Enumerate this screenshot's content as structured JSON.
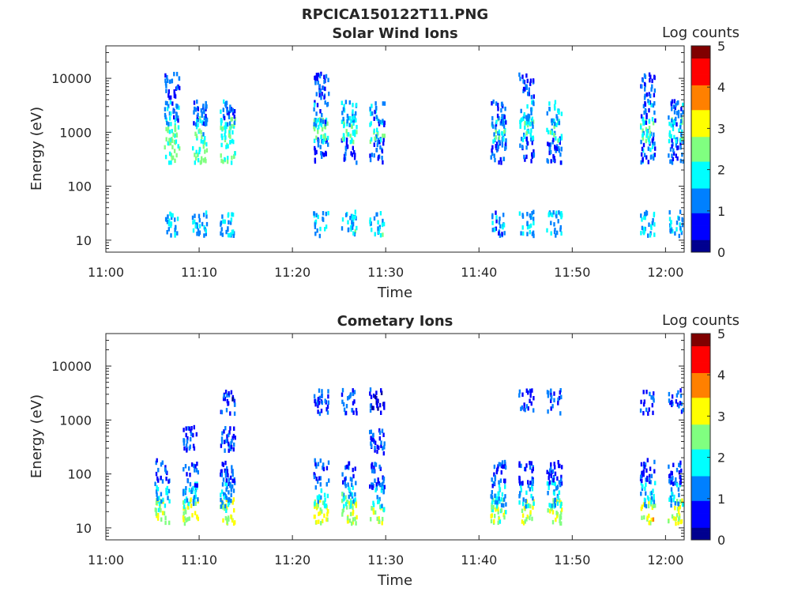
{
  "figure": {
    "title": "RPCICA150122T11.PNG"
  },
  "colormap": [
    "#00008f",
    "#0000ff",
    "#0080ff",
    "#00ffff",
    "#80ff80",
    "#ffff00",
    "#ff8000",
    "#ff0000",
    "#800000"
  ],
  "chart_data": [
    {
      "type": "heatmap",
      "title": "Solar Wind Ions",
      "xlabel": "Time",
      "ylabel": "Energy (eV)",
      "y_scale": "log",
      "xlim": [
        "11:00",
        "12:02"
      ],
      "ylim": [
        6,
        40000
      ],
      "x_ticks": [
        "11:00",
        "11:10",
        "11:20",
        "11:30",
        "11:40",
        "11:50",
        "12:00"
      ],
      "y_ticks": [
        "10",
        "100",
        "1000",
        "10000"
      ],
      "colorbar": {
        "label": "Log counts",
        "range": [
          0,
          5
        ],
        "ticks": [
          "0",
          "1",
          "2",
          "3",
          "4",
          "5"
        ]
      },
      "bursts": [
        {
          "time": "11:07",
          "groups": [
            {
              "energy": 22,
              "log_counts": 1.6
            },
            {
              "energy": 500,
              "log_counts": 2.2
            },
            {
              "energy": 1200,
              "log_counts": 2.3
            },
            {
              "energy": 2500,
              "log_counts": 1.3
            },
            {
              "energy": 8000,
              "log_counts": 1.0
            }
          ]
        },
        {
          "time": "11:10",
          "groups": [
            {
              "energy": 22,
              "log_counts": 1.5
            },
            {
              "energy": 500,
              "log_counts": 2.2
            },
            {
              "energy": 1200,
              "log_counts": 2.0
            },
            {
              "energy": 2500,
              "log_counts": 1.1
            }
          ]
        },
        {
          "time": "11:13",
          "groups": [
            {
              "energy": 22,
              "log_counts": 1.6
            },
            {
              "energy": 500,
              "log_counts": 2.3
            },
            {
              "energy": 1200,
              "log_counts": 2.2
            },
            {
              "energy": 2500,
              "log_counts": 1.2
            }
          ]
        },
        {
          "time": "11:23",
          "groups": [
            {
              "energy": 22,
              "log_counts": 1.5
            },
            {
              "energy": 500,
              "log_counts": 1.0
            },
            {
              "energy": 1200,
              "log_counts": 2.2
            },
            {
              "energy": 2500,
              "log_counts": 1.2
            },
            {
              "energy": 8000,
              "log_counts": 1.0
            }
          ]
        },
        {
          "time": "11:26",
          "groups": [
            {
              "energy": 22,
              "log_counts": 1.7
            },
            {
              "energy": 500,
              "log_counts": 1.0
            },
            {
              "energy": 1200,
              "log_counts": 2.2
            },
            {
              "energy": 2500,
              "log_counts": 1.5
            }
          ]
        },
        {
          "time": "11:29",
          "groups": [
            {
              "energy": 22,
              "log_counts": 1.8
            },
            {
              "energy": 500,
              "log_counts": 1.0
            },
            {
              "energy": 1200,
              "log_counts": 1.9
            },
            {
              "energy": 2500,
              "log_counts": 1.3
            }
          ]
        },
        {
          "time": "11:42",
          "groups": [
            {
              "energy": 22,
              "log_counts": 1.4
            },
            {
              "energy": 500,
              "log_counts": 1.0
            },
            {
              "energy": 1200,
              "log_counts": 1.8
            },
            {
              "energy": 2500,
              "log_counts": 1.1
            }
          ]
        },
        {
          "time": "11:45",
          "groups": [
            {
              "energy": 22,
              "log_counts": 1.6
            },
            {
              "energy": 500,
              "log_counts": 1.0
            },
            {
              "energy": 1200,
              "log_counts": 2.0
            },
            {
              "energy": 2500,
              "log_counts": 1.5
            },
            {
              "energy": 8000,
              "log_counts": 1.0
            }
          ]
        },
        {
          "time": "11:48",
          "groups": [
            {
              "energy": 22,
              "log_counts": 1.6
            },
            {
              "energy": 500,
              "log_counts": 1.0
            },
            {
              "energy": 1200,
              "log_counts": 2.0
            },
            {
              "energy": 2500,
              "log_counts": 1.6
            }
          ]
        },
        {
          "time": "11:58",
          "groups": [
            {
              "energy": 22,
              "log_counts": 1.6
            },
            {
              "energy": 500,
              "log_counts": 1.2
            },
            {
              "energy": 1200,
              "log_counts": 2.0
            },
            {
              "energy": 2500,
              "log_counts": 1.3
            },
            {
              "energy": 8000,
              "log_counts": 1.0
            }
          ]
        },
        {
          "time": "12:01",
          "groups": [
            {
              "energy": 22,
              "log_counts": 1.5
            },
            {
              "energy": 500,
              "log_counts": 1.0
            },
            {
              "energy": 1200,
              "log_counts": 2.0
            },
            {
              "energy": 2500,
              "log_counts": 1.2
            }
          ]
        }
      ]
    },
    {
      "type": "heatmap",
      "title": "Cometary Ions",
      "xlabel": "Time",
      "ylabel": "Energy (eV)",
      "y_scale": "log",
      "xlim": [
        "11:00",
        "12:02"
      ],
      "ylim": [
        6,
        40000
      ],
      "x_ticks": [
        "11:00",
        "11:10",
        "11:20",
        "11:30",
        "11:40",
        "11:50",
        "12:00"
      ],
      "y_ticks": [
        "10",
        "100",
        "1000",
        "10000"
      ],
      "colorbar": {
        "label": "Log counts",
        "range": [
          0,
          5
        ],
        "ticks": [
          "0",
          "1",
          "2",
          "3",
          "4",
          "5"
        ]
      },
      "bursts": [
        {
          "time": "11:06",
          "groups": [
            {
              "energy": 22,
              "log_counts": 2.6
            },
            {
              "energy": 45,
              "log_counts": 1.6
            },
            {
              "energy": 120,
              "log_counts": 1.0
            }
          ]
        },
        {
          "time": "11:09",
          "groups": [
            {
              "energy": 22,
              "log_counts": 2.8
            },
            {
              "energy": 45,
              "log_counts": 1.7
            },
            {
              "energy": 110,
              "log_counts": 1.0
            },
            {
              "energy": 480,
              "log_counts": 1.0
            }
          ]
        },
        {
          "time": "11:13",
          "groups": [
            {
              "energy": 22,
              "log_counts": 2.7
            },
            {
              "energy": 45,
              "log_counts": 1.6
            },
            {
              "energy": 110,
              "log_counts": 1.0
            },
            {
              "energy": 480,
              "log_counts": 1.0
            },
            {
              "energy": 2400,
              "log_counts": 0.8
            }
          ]
        },
        {
          "time": "11:23",
          "groups": [
            {
              "energy": 22,
              "log_counts": 2.8
            },
            {
              "energy": 45,
              "log_counts": 1.7
            },
            {
              "energy": 120,
              "log_counts": 1.0
            },
            {
              "energy": 2400,
              "log_counts": 1.0
            }
          ]
        },
        {
          "time": "11:26",
          "groups": [
            {
              "energy": 22,
              "log_counts": 2.8
            },
            {
              "energy": 45,
              "log_counts": 1.7
            },
            {
              "energy": 110,
              "log_counts": 1.0
            },
            {
              "energy": 2400,
              "log_counts": 1.0
            }
          ]
        },
        {
          "time": "11:29",
          "groups": [
            {
              "energy": 22,
              "log_counts": 2.7
            },
            {
              "energy": 45,
              "log_counts": 1.7
            },
            {
              "energy": 100,
              "log_counts": 1.0
            },
            {
              "energy": 420,
              "log_counts": 1.0
            },
            {
              "energy": 2400,
              "log_counts": 0.8
            }
          ]
        },
        {
          "time": "11:42",
          "groups": [
            {
              "energy": 22,
              "log_counts": 2.6
            },
            {
              "energy": 45,
              "log_counts": 1.6
            },
            {
              "energy": 110,
              "log_counts": 1.0
            }
          ]
        },
        {
          "time": "11:45",
          "groups": [
            {
              "energy": 22,
              "log_counts": 2.8
            },
            {
              "energy": 45,
              "log_counts": 1.6
            },
            {
              "energy": 110,
              "log_counts": 1.0
            },
            {
              "energy": 2400,
              "log_counts": 1.0
            }
          ]
        },
        {
          "time": "11:48",
          "groups": [
            {
              "energy": 22,
              "log_counts": 2.9
            },
            {
              "energy": 45,
              "log_counts": 1.7
            },
            {
              "energy": 110,
              "log_counts": 1.0
            },
            {
              "energy": 2400,
              "log_counts": 1.0
            }
          ]
        },
        {
          "time": "11:58",
          "groups": [
            {
              "energy": 22,
              "log_counts": 3.0
            },
            {
              "energy": 45,
              "log_counts": 1.8
            },
            {
              "energy": 130,
              "log_counts": 1.0
            },
            {
              "energy": 2400,
              "log_counts": 1.0
            }
          ]
        },
        {
          "time": "12:01",
          "groups": [
            {
              "energy": 22,
              "log_counts": 2.9
            },
            {
              "energy": 45,
              "log_counts": 1.7
            },
            {
              "energy": 110,
              "log_counts": 1.0
            },
            {
              "energy": 2400,
              "log_counts": 1.0
            }
          ]
        }
      ]
    }
  ]
}
